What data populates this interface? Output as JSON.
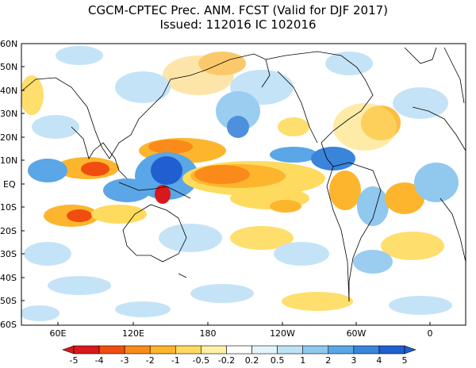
{
  "header": {
    "title": "CGCM-CPTEC Prec. ANM. FCST  (Valid for DJF 2017)",
    "subtitle": "Issued:  112016 IC 102016"
  },
  "axes": {
    "lat_labels": [
      "60N",
      "50N",
      "40N",
      "30N",
      "20N",
      "10N",
      "EQ",
      "10S",
      "20S",
      "30S",
      "40S",
      "50S",
      "60S"
    ],
    "lon_labels": [
      "60E",
      "120E",
      "180",
      "120W",
      "60W",
      "0"
    ]
  },
  "legend": {
    "labels": [
      "-5",
      "-4",
      "-3",
      "-2",
      "-1",
      "-0.5",
      "-0.2",
      "0.2",
      "0.5",
      "1",
      "2",
      "3",
      "4",
      "5"
    ],
    "colors": [
      "#d7191c",
      "#f04d10",
      "#fa8a1a",
      "#fdb52e",
      "#fedb5e",
      "#fef0a6",
      "#ffffff",
      "#e4f4fb",
      "#bfe3f6",
      "#90c8ee",
      "#5aa6e6",
      "#3a84da",
      "#1f5fcf"
    ]
  },
  "colors": {
    "dry_strong": "#e8421a",
    "dry_mid": "#f99a28",
    "dry_light": "#fde3a0",
    "wet_light": "#bfe0f6",
    "wet_mid": "#6cb2ea",
    "wet_strong": "#1f63d2",
    "land_outline": "#000000"
  }
}
